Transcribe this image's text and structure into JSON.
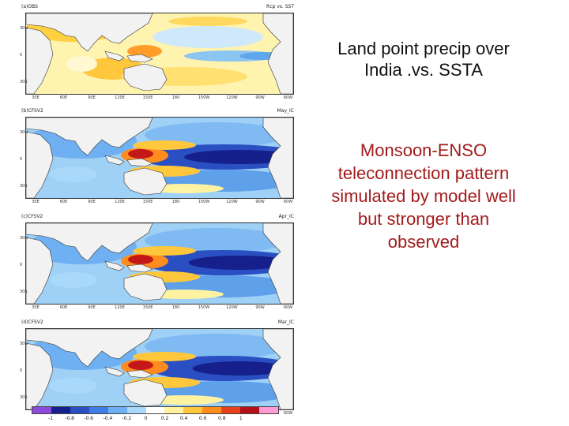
{
  "panels": [
    {
      "left_label": "(a)OBS",
      "right_label": "Rcp vs. SST",
      "variant": "obs"
    },
    {
      "left_label": "(b)CFSV2",
      "right_label": "May_IC",
      "variant": "model1"
    },
    {
      "left_label": "(c)CFSV2",
      "right_label": "Apr_IC",
      "variant": "model2"
    },
    {
      "left_label": "(d)CFSV2",
      "right_label": "Mar_IC",
      "variant": "model3"
    }
  ],
  "lat_labels": [
    "30N",
    "0",
    "30S"
  ],
  "lon_labels": [
    "30E",
    "60E",
    "90E",
    "120E",
    "150E",
    "180",
    "150W",
    "120W",
    "90W",
    "60W"
  ],
  "colorbar": {
    "colors": [
      "#8c4bd8",
      "#16208c",
      "#2a4fc2",
      "#3f7fe4",
      "#6eb0f2",
      "#a8d8fa",
      "#ffffff",
      "#fff2a0",
      "#ffc83c",
      "#ff8c1e",
      "#e8401a",
      "#b2101a",
      "#ff9cd6"
    ],
    "labels": [
      "-1",
      "-0.8",
      "-0.6",
      "-0.4",
      "-0.2",
      "0",
      "0.2",
      "0.4",
      "0.6",
      "0.8",
      "1"
    ]
  },
  "text_block_1": {
    "line1": "Land point precip over",
    "line2": "India .vs. SSTA"
  },
  "text_block_2": {
    "line1": "Monsoon-ENSO",
    "line2": "teleconnection pattern",
    "line3": "simulated by model well",
    "line4": "but stronger than",
    "line5": "observed"
  }
}
